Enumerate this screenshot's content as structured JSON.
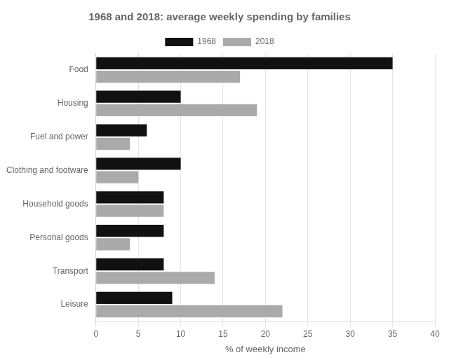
{
  "chart_data": {
    "type": "bar",
    "orientation": "horizontal",
    "title": "1968 and 2018: average weekly spending by families",
    "xlabel": "% of weekly income",
    "categories": [
      "Food",
      "Housing",
      "Fuel and power",
      "Clothing and footware",
      "Household goods",
      "Personal goods",
      "Transport",
      "Leisure"
    ],
    "series": [
      {
        "name": "1968",
        "color": "#111111",
        "values": [
          35,
          10,
          6,
          10,
          8,
          8,
          8,
          9
        ]
      },
      {
        "name": "2018",
        "color": "#aaaaaa",
        "values": [
          17,
          19,
          4,
          5,
          8,
          4,
          14,
          22
        ]
      }
    ],
    "xlim": [
      0,
      40
    ],
    "xticks": [
      0,
      5,
      10,
      15,
      20,
      25,
      30,
      35,
      40
    ],
    "grid": true,
    "legend": "top"
  }
}
